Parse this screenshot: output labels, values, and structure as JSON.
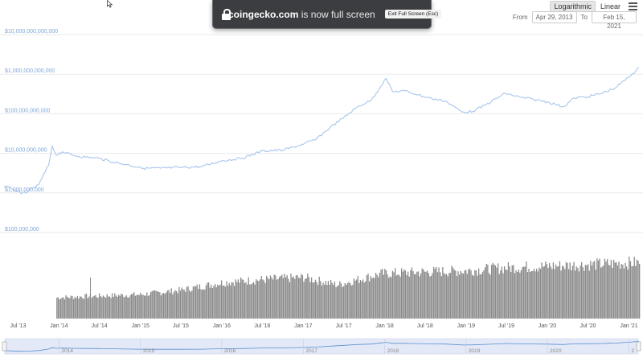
{
  "toolbar": {
    "scale_options": [
      "Logarithmic",
      "Linear"
    ],
    "active_scale": "Logarithmic",
    "menu_icon": "hamburger-menu-icon"
  },
  "range": {
    "from_label": "From",
    "from_value": "Apr 29, 2013",
    "to_label": "To",
    "to_value": "Feb 15, 2021"
  },
  "fullscreen_banner": {
    "site": "coingecko.com",
    "message": " is now full screen",
    "exit_label": "Exit Full Screen (Esc)",
    "icon": "lock-icon"
  },
  "colors": {
    "price_line": "#a8c6ec",
    "axis_label": "#7fa7d8",
    "volume_fill": "#8a8a8a",
    "navigator_fill": "#e3e9f7",
    "navigator_line": "#5b8fd0",
    "grid": "#e9e9e9"
  },
  "chart_data": {
    "type": "line",
    "yscale": "log",
    "ylim": [
      100000000,
      10000000000000
    ],
    "y_ticks": [
      {
        "value": 10000000000000,
        "label": "$10,000,000,000,000"
      },
      {
        "value": 1000000000000,
        "label": "$1,000,000,000,000"
      },
      {
        "value": 100000000000,
        "label": "$100,000,000,000"
      },
      {
        "value": 10000000000,
        "label": "$10,000,000,000"
      },
      {
        "value": 1000000000,
        "label": "$1,000,000,000"
      },
      {
        "value": 100000000,
        "label": "$100,000,000"
      }
    ],
    "x_ticks": [
      "Jul '13",
      "Jan '14",
      "Jul '14",
      "Jan '15",
      "Jul '15",
      "Jan '16",
      "Jul '16",
      "Jan '17",
      "Jul '17",
      "Jan '18",
      "Jul '18",
      "Jan '19",
      "Jul '19",
      "Jan '20",
      "Jul '20",
      "Jan '21"
    ],
    "x_tick_dates": [
      "2013-07-01",
      "2014-01-01",
      "2014-07-01",
      "2015-01-01",
      "2015-07-01",
      "2016-01-01",
      "2016-07-01",
      "2017-01-01",
      "2017-07-01",
      "2018-01-01",
      "2018-07-01",
      "2019-01-01",
      "2019-07-01",
      "2020-01-01",
      "2020-07-01",
      "2021-01-01"
    ],
    "x_range": [
      "2013-04-29",
      "2021-02-15"
    ],
    "series": [
      {
        "x": [
          "2013-04-29",
          "2013-06-01",
          "2013-07-15",
          "2013-08-15",
          "2013-10-01",
          "2013-11-15",
          "2013-12-01",
          "2013-12-20",
          "2014-01-15",
          "2014-03-01",
          "2014-05-01",
          "2014-07-01",
          "2014-09-01",
          "2014-11-01",
          "2015-01-15",
          "2015-04-01",
          "2015-07-01",
          "2015-10-01",
          "2016-01-01",
          "2016-04-01",
          "2016-07-01",
          "2016-10-01",
          "2017-01-01",
          "2017-03-01",
          "2017-05-01",
          "2017-07-01",
          "2017-09-01",
          "2017-11-01",
          "2017-12-15",
          "2018-01-07",
          "2018-02-06",
          "2018-04-01",
          "2018-06-01",
          "2018-08-01",
          "2018-10-01",
          "2018-12-15",
          "2019-02-01",
          "2019-04-01",
          "2019-06-26",
          "2019-09-01",
          "2019-11-01",
          "2020-01-01",
          "2020-03-13",
          "2020-05-01",
          "2020-07-01",
          "2020-09-01",
          "2020-11-01",
          "2021-01-01",
          "2021-02-15"
        ],
        "values": [
          1500000000,
          1300000000,
          950000000,
          1100000000,
          1600000000,
          5000000000,
          15000000000,
          9000000000,
          11000000000,
          9000000000,
          8000000000,
          7500000000,
          6000000000,
          5200000000,
          4200000000,
          4200000000,
          4400000000,
          4600000000,
          6500000000,
          7500000000,
          11500000000,
          12000000000,
          17000000000,
          23000000000,
          45000000000,
          80000000000,
          150000000000,
          220000000000,
          500000000000,
          780000000000,
          360000000000,
          380000000000,
          300000000000,
          240000000000,
          210000000000,
          110000000000,
          115000000000,
          170000000000,
          330000000000,
          260000000000,
          230000000000,
          200000000000,
          150000000000,
          250000000000,
          270000000000,
          330000000000,
          450000000000,
          840000000000,
          1500000000000
        ]
      }
    ],
    "volume_note": "Volume bars shown beneath the price line; heights are relative (no volume axis labeled)",
    "volume": {
      "x": [
        "2013-12-20",
        "2014-06-01",
        "2015-01-01",
        "2015-07-01",
        "2016-01-01",
        "2016-07-01",
        "2017-01-01",
        "2017-06-01",
        "2017-12-15",
        "2018-06-01",
        "2019-01-01",
        "2019-07-01",
        "2020-01-01",
        "2020-07-01",
        "2021-02-15"
      ],
      "values": [
        28,
        30,
        32,
        38,
        48,
        52,
        55,
        45,
        60,
        62,
        64,
        68,
        70,
        72,
        75
      ]
    },
    "navigator_labels": [
      "2014",
      "2015",
      "2016",
      "2017",
      "2018",
      "2019",
      "2020",
      "2"
    ]
  }
}
